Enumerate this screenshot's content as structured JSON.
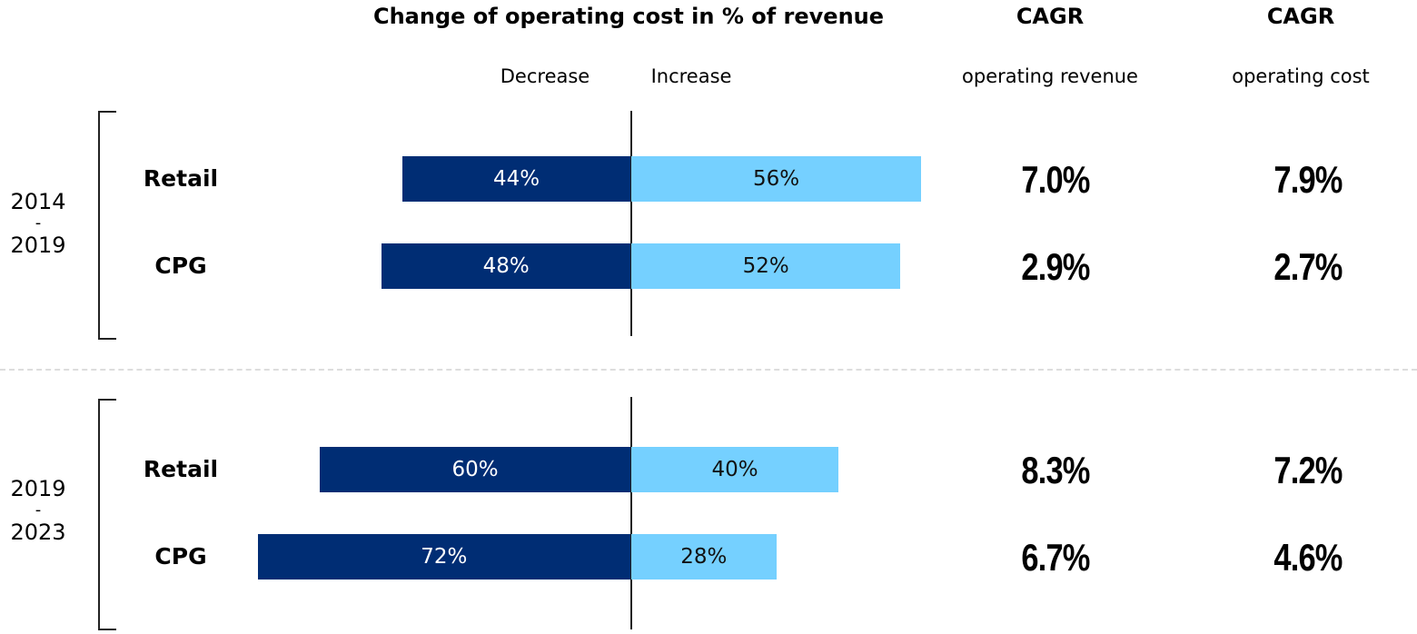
{
  "chart_data": {
    "type": "bar",
    "title": "Change of operating cost in % of revenue",
    "legend": [
      "Decrease",
      "Increase"
    ],
    "colors": {
      "decrease": "#002d74",
      "increase": "#75d0ff"
    },
    "column_headers": [
      {
        "title": "CAGR",
        "subtitle": "operating revenue"
      },
      {
        "title": "CAGR",
        "subtitle": "operating cost"
      }
    ],
    "groups": [
      {
        "period": [
          "2014",
          "-",
          "2019"
        ],
        "rows": [
          {
            "category": "Retail",
            "decrease": 44,
            "increase": 56,
            "decrease_label": "44%",
            "increase_label": "56%",
            "cagr_revenue": "7.0%",
            "cagr_cost": "7.9%"
          },
          {
            "category": "CPG",
            "decrease": 48,
            "increase": 52,
            "decrease_label": "48%",
            "increase_label": "52%",
            "cagr_revenue": "2.9%",
            "cagr_cost": "2.7%"
          }
        ]
      },
      {
        "period": [
          "2019",
          "-",
          "2023"
        ],
        "rows": [
          {
            "category": "Retail",
            "decrease": 60,
            "increase": 40,
            "decrease_label": "60%",
            "increase_label": "40%",
            "cagr_revenue": "8.3%",
            "cagr_cost": "7.2%"
          },
          {
            "category": "CPG",
            "decrease": 72,
            "increase": 28,
            "decrease_label": "72%",
            "increase_label": "28%",
            "cagr_revenue": "6.7%",
            "cagr_cost": "4.6%"
          }
        ]
      }
    ],
    "xlim": [
      -72,
      56
    ]
  }
}
